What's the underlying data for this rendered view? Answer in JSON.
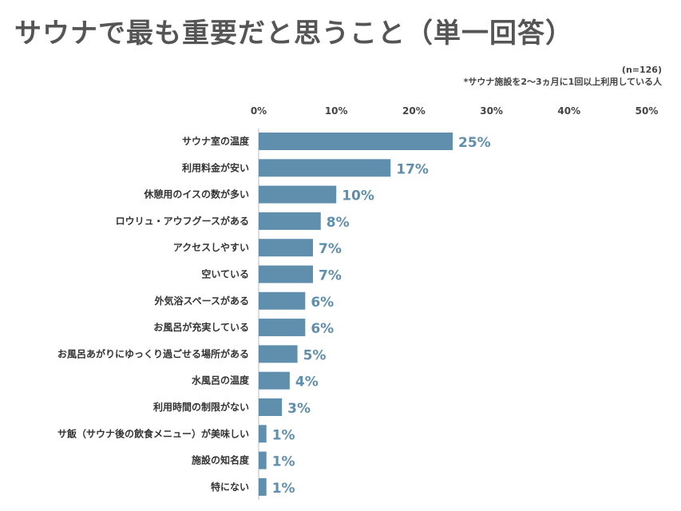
{
  "title": "サウナで最も重要だと思うこと（単一回答）",
  "sample_note": "(n=126)",
  "target_note": "*サウナ施設を2〜3ヵ月に1回以上利用している人",
  "colors": {
    "bar": "#5f8fad",
    "label": "#5f8fad",
    "title": "#555555"
  },
  "chart_data": {
    "type": "bar",
    "orientation": "horizontal",
    "title": "サウナで最も重要だと思うこと（単一回答）",
    "xlim": [
      0,
      50
    ],
    "x_ticks": [
      "0%",
      "10%",
      "20%",
      "30%",
      "40%",
      "50%"
    ],
    "categories": [
      "サウナ室の温度",
      "利用料金が安い",
      "休憩用のイスの数が多い",
      "ロウリュ・アウフグースがある",
      "アクセスしやすい",
      "空いている",
      "外気浴スペースがある",
      "お風呂が充実している",
      "お風呂あがりにゆっくり過ごせる場所がある",
      "水風呂の温度",
      "利用時間の制限がない",
      "サ飯（サウナ後の飲食メニュー）が美味しい",
      "施設の知名度",
      "特にない"
    ],
    "values": [
      25,
      17,
      10,
      8,
      7,
      7,
      6,
      6,
      5,
      4,
      3,
      1,
      1,
      1
    ],
    "value_labels": [
      "25%",
      "17%",
      "10%",
      "8%",
      "7%",
      "7%",
      "6%",
      "6%",
      "5%",
      "4%",
      "3%",
      "1%",
      "1%",
      "1%"
    ],
    "grid": false,
    "legend": "none"
  }
}
